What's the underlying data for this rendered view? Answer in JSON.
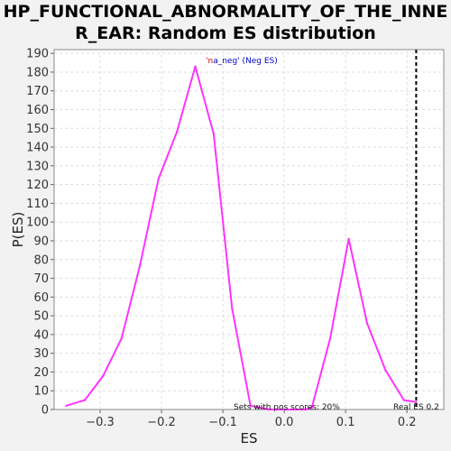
{
  "chart_data": {
    "type": "line",
    "title_line1": "HP_FUNCTIONAL_ABNORMALITY_OF_THE_INNE",
    "title_line2": "R_EAR: Random ES distribution",
    "xlabel": "ES",
    "ylabel": "P(ES)",
    "xlim": [
      -0.375,
      0.26
    ],
    "ylim": [
      0,
      192
    ],
    "x_ticks": [
      -0.3,
      -0.2,
      -0.1,
      0.0,
      0.1,
      0.2
    ],
    "x_tick_labels": [
      "−0.3",
      "−0.2",
      "−0.1",
      "0.0",
      "0.1",
      "0.2"
    ],
    "y_ticks": [
      0,
      10,
      20,
      30,
      40,
      50,
      60,
      70,
      80,
      90,
      100,
      110,
      120,
      130,
      140,
      150,
      160,
      170,
      180,
      190
    ],
    "grid": true,
    "series": [
      {
        "color": "#ff33ff",
        "x": [
          -0.355,
          -0.325,
          -0.295,
          -0.265,
          -0.235,
          -0.205,
          -0.175,
          -0.145,
          -0.115,
          -0.085,
          -0.055,
          -0.025,
          0.005,
          0.035,
          0.045,
          0.075,
          0.105,
          0.135,
          0.165,
          0.195,
          0.215
        ],
        "y": [
          2,
          5,
          18,
          38,
          77,
          123,
          148,
          183,
          147,
          54,
          2,
          0,
          0,
          0,
          1,
          38,
          91,
          46,
          21,
          5,
          4
        ]
      }
    ],
    "real_es": {
      "value": 0.215,
      "label": "Real ES 0.2"
    },
    "annotations": {
      "top_prefix": "'n",
      "top_mid": "a_neg",
      "top_suffix": "' (Neg ES)",
      "bottom": "Sets with pos scores: 20%"
    },
    "colors": {
      "line": "#ff33ff",
      "grid": "#dddddd",
      "real_es_line": "#000000",
      "annotation_red": "#cc0000",
      "annotation_blue": "#0000cc"
    }
  }
}
